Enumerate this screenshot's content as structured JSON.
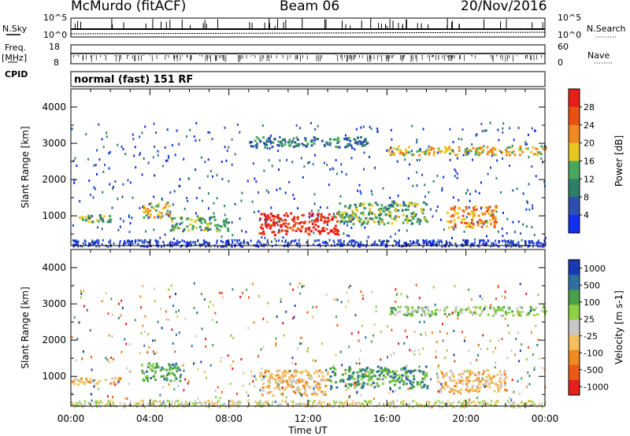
{
  "header": {
    "station": "McMurdo (fitACF)",
    "beam": "Beam 06",
    "date": "20/Nov/2016"
  },
  "left_labels": {
    "nsky": "N.Sky",
    "freq_line1": "Freq.",
    "freq_line2": "[MHz]",
    "cpid": "CPID"
  },
  "right_labels": {
    "nsearch": "N.Search",
    "nave": "Nave"
  },
  "noise_panel": {
    "left_ticks": [
      "10^5",
      "10^0"
    ],
    "right_ticks": [
      "10^5",
      "10^0"
    ]
  },
  "freq_panel": {
    "left_ticks": [
      "18",
      "8"
    ],
    "right_ticks": [
      "60",
      "0"
    ]
  },
  "cpid_text": "normal (fast) 151 RF",
  "colors": {
    "power_scale": [
      "#1030ee",
      "#2e4fae",
      "#2e7f6a",
      "#4aa85c",
      "#e8c81e",
      "#f08a1e",
      "#ec5010",
      "#e81e18"
    ],
    "velocity_scale": [
      "#e61e1e",
      "#f05818",
      "#f08a1e",
      "#f5c060",
      "#c8c8c8",
      "#8cd242",
      "#4aa04a",
      "#2e6fa0",
      "#1a3ab4"
    ]
  },
  "chart_data": [
    {
      "type": "heatmap",
      "name": "power",
      "ylabel": "Slant Range [km]",
      "colorbar_label": "Power [dB]",
      "colorbar_ticks": [
        "28",
        "24",
        "20",
        "16",
        "12",
        "8",
        "4"
      ],
      "yticks": [
        "4000",
        "3000",
        "2000",
        "1000"
      ],
      "ylim": [
        180,
        4500
      ],
      "xlim": [
        0,
        24
      ],
      "echo_regions": [
        {
          "t": [
            0.0,
            2.0
          ],
          "r": [
            850,
            1050
          ],
          "level": 3
        },
        {
          "t": [
            3.6,
            5.0
          ],
          "r": [
            950,
            1400
          ],
          "level": 4
        },
        {
          "t": [
            5.0,
            8.0
          ],
          "r": [
            600,
            1000
          ],
          "level": 3
        },
        {
          "t": [
            9.5,
            13.5
          ],
          "r": [
            500,
            1100
          ],
          "level": 7
        },
        {
          "t": [
            13.5,
            18.0
          ],
          "r": [
            800,
            1400
          ],
          "level": 3
        },
        {
          "t": [
            19.0,
            21.5
          ],
          "r": [
            700,
            1300
          ],
          "level": 5
        },
        {
          "t": [
            16.0,
            24.0
          ],
          "r": [
            2700,
            2950
          ],
          "level": 4
        },
        {
          "t": [
            9.0,
            15.0
          ],
          "r": [
            2900,
            3200
          ],
          "level": 2
        }
      ]
    },
    {
      "type": "heatmap",
      "name": "velocity",
      "ylabel": "Slant Range [km]",
      "colorbar_label": "Velocity [m s-1]",
      "colorbar_ticks": [
        "1000",
        "500",
        "100",
        "25",
        "-25",
        "-100",
        "-500",
        "-1000"
      ],
      "yticks": [
        "4000",
        "3000",
        "2000",
        "1000"
      ],
      "ylim": [
        180,
        4500
      ],
      "xlim": [
        0,
        24
      ],
      "xlabel": "Time UT",
      "xticks": [
        "00:00",
        "04:00",
        "08:00",
        "12:00",
        "16:00",
        "20:00",
        "00:00"
      ],
      "echo_regions": [
        {
          "t": [
            0.0,
            2.5
          ],
          "r": [
            800,
            1000
          ],
          "vel": "-100"
        },
        {
          "t": [
            3.5,
            5.5
          ],
          "r": [
            900,
            1400
          ],
          "vel": "100"
        },
        {
          "t": [
            9.5,
            13.0
          ],
          "r": [
            500,
            1200
          ],
          "vel": "-100"
        },
        {
          "t": [
            13.0,
            18.0
          ],
          "r": [
            700,
            1300
          ],
          "vel": "100"
        },
        {
          "t": [
            18.5,
            22.0
          ],
          "r": [
            600,
            1200
          ],
          "vel": "-100"
        },
        {
          "t": [
            16.0,
            24.0
          ],
          "r": [
            2700,
            2950
          ],
          "vel": "25"
        }
      ]
    }
  ]
}
